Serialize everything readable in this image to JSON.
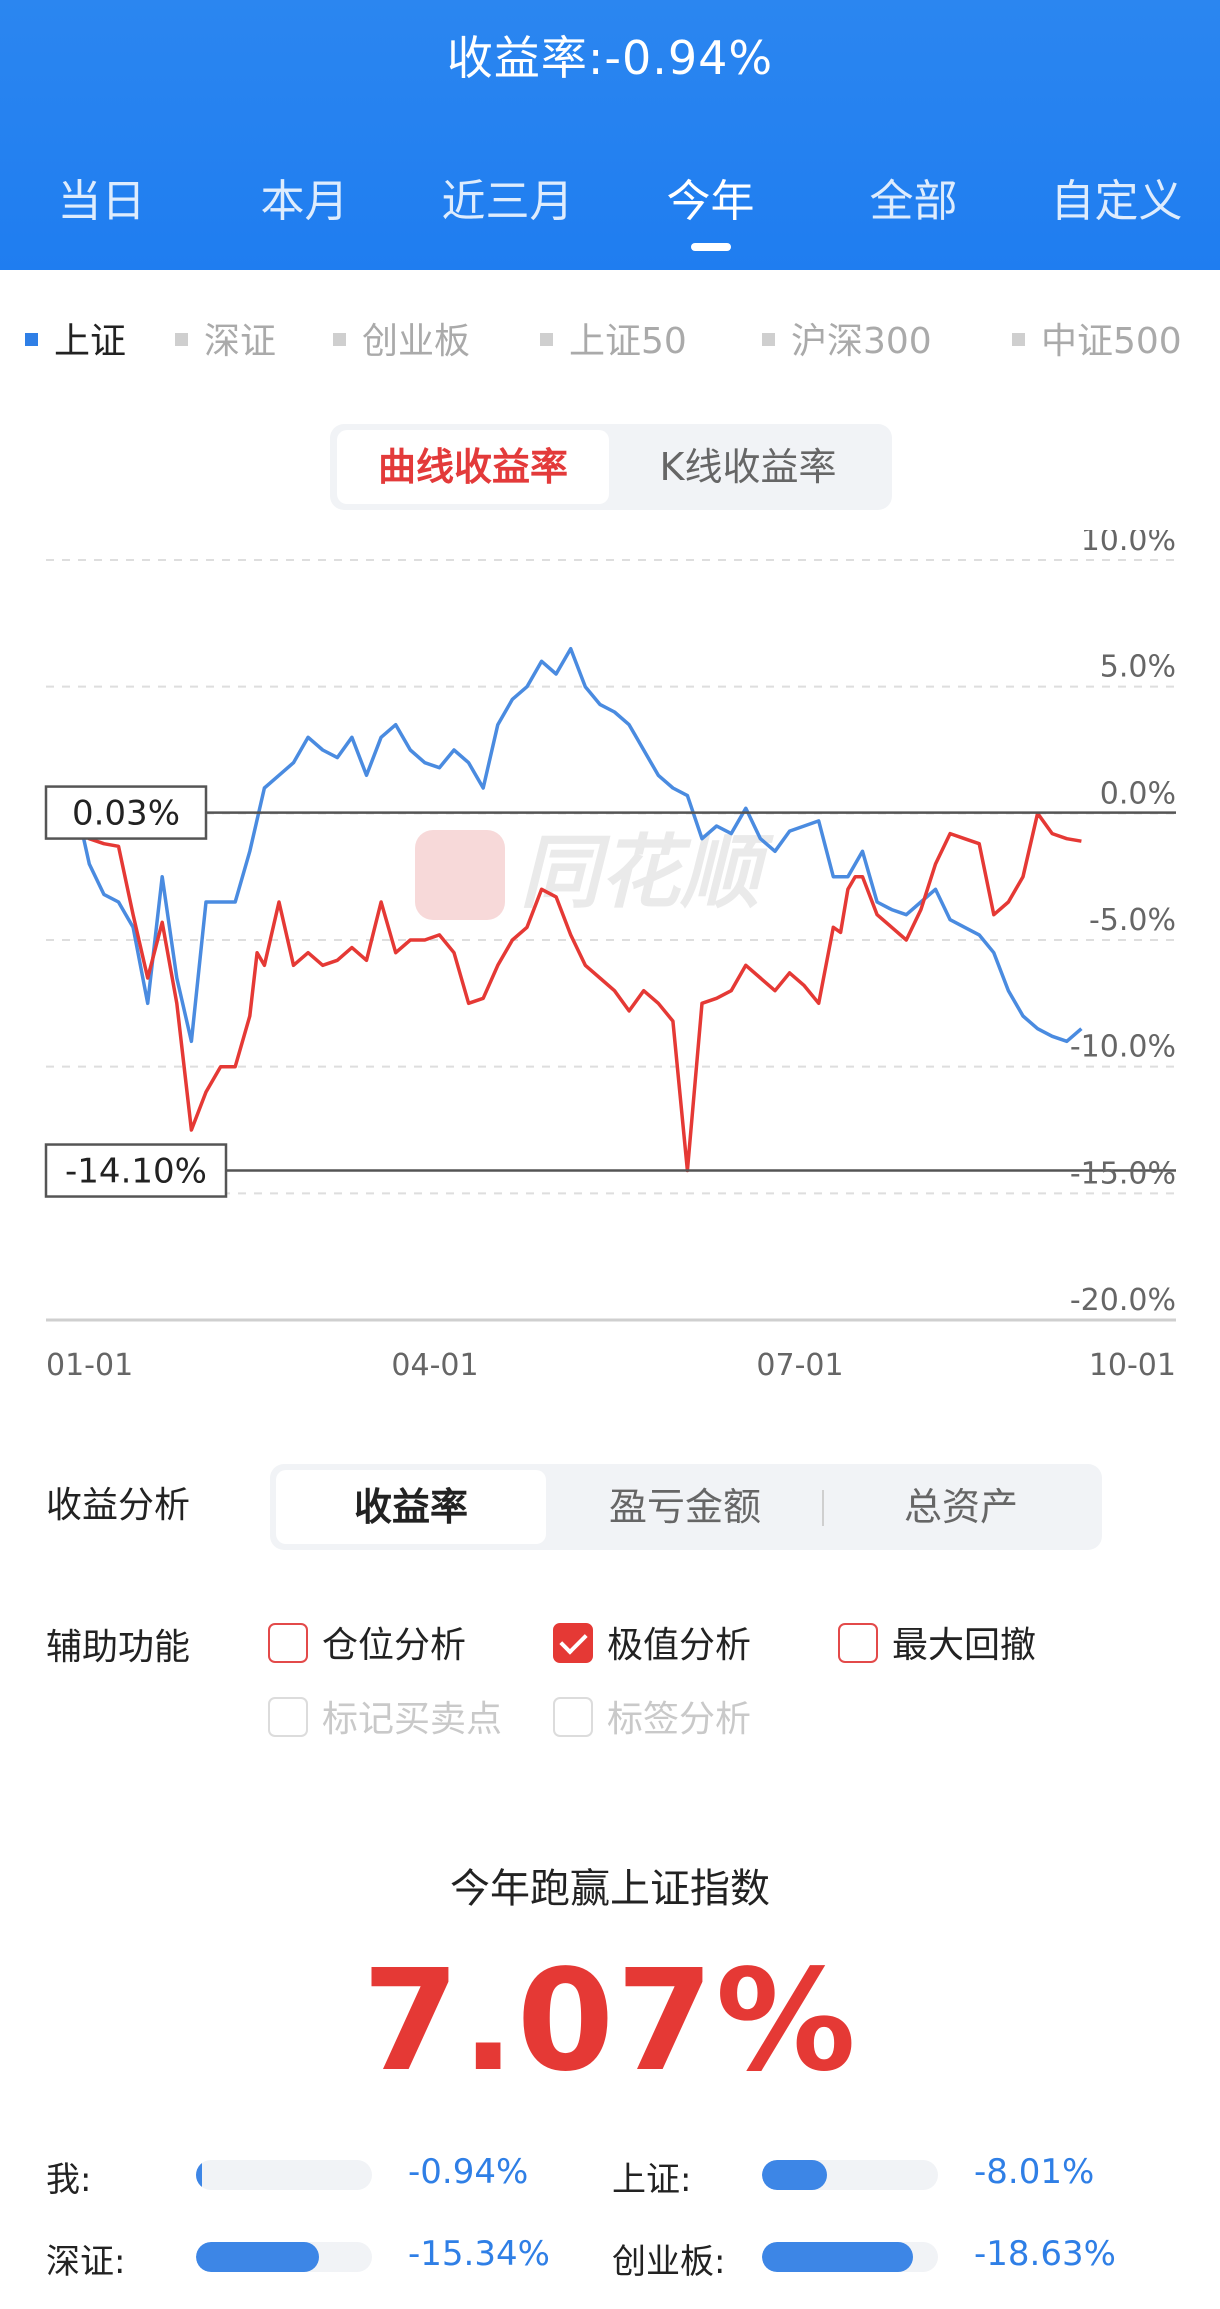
{
  "header": {
    "title": "收益率:-0.94%",
    "range_tabs": [
      {
        "label": "当日"
      },
      {
        "label": "本月"
      },
      {
        "label": "近三月"
      },
      {
        "label": "今年"
      },
      {
        "label": "全部"
      },
      {
        "label": "自定义"
      }
    ],
    "active_range_tab": "今年"
  },
  "index_tabs": [
    {
      "label": "上证",
      "active": true
    },
    {
      "label": "深证",
      "active": false
    },
    {
      "label": "创业板",
      "active": false
    },
    {
      "label": "上证50",
      "active": false
    },
    {
      "label": "沪深300",
      "active": false
    },
    {
      "label": "中证500",
      "active": false
    }
  ],
  "chart_toggle": {
    "curve_label": "曲线收益率",
    "kline_label": "K线收益率",
    "active": "曲线收益率"
  },
  "watermark": "同花顺",
  "colors": {
    "brand_blue": "#1f7df0",
    "mine_red": "#e53935",
    "index_blue": "#4a8be0",
    "bar_blue": "#3d86e6"
  },
  "chart_data": {
    "type": "line",
    "x_tick_labels": [
      "01-01",
      "04-01",
      "07-01",
      "10-01"
    ],
    "y_tick_labels": [
      "10.0%",
      "5.0%",
      "0.0%",
      "-5.0%",
      "-10.0%",
      "-15.0%",
      "-20.0%"
    ],
    "ylim": [
      -20,
      10
    ],
    "x_unit": "trading days since 01-01",
    "xlim": [
      0,
      275
    ],
    "max_marker": {
      "label": "0.03%",
      "value": 0.03
    },
    "min_marker": {
      "label": "-14.10%",
      "value": -14.1
    },
    "series": [
      {
        "color": "#e53935",
        "x": [
          0,
          2,
          6,
          10,
          14,
          18,
          22,
          26,
          30,
          34,
          38,
          42,
          46,
          48,
          50,
          54,
          58,
          62,
          66,
          70,
          74,
          78,
          82,
          86,
          90,
          94,
          98,
          102,
          106,
          110,
          114,
          118,
          122,
          126,
          130,
          134,
          138,
          142,
          146,
          150,
          154,
          158,
          162,
          166,
          170,
          174,
          178,
          182,
          186,
          190,
          194,
          198,
          202,
          206,
          208,
          210,
          212,
          214,
          218,
          222,
          226,
          230,
          234,
          238,
          242,
          246,
          250,
          254,
          258,
          262,
          266,
          270,
          274
        ],
        "y": [
          -0.5,
          -1.0,
          -1.2,
          -1.3,
          -4.0,
          -6.5,
          -4.3,
          -7.5,
          -12.5,
          -11.0,
          -10.0,
          -10.0,
          -8.0,
          -5.5,
          -6.0,
          -3.5,
          -6.0,
          -5.5,
          -6.0,
          -5.8,
          -5.3,
          -5.8,
          -3.5,
          -5.5,
          -5.0,
          -5.0,
          -4.8,
          -5.5,
          -7.5,
          -7.3,
          -6.0,
          -5.0,
          -4.5,
          -3.0,
          -3.3,
          -4.8,
          -6.0,
          -6.5,
          -7.0,
          -7.8,
          -7.0,
          -7.5,
          -8.2,
          -14.1,
          -7.5,
          -7.3,
          -7.0,
          -6.0,
          -6.5,
          -7.0,
          -6.3,
          -6.8,
          -7.5,
          -4.5,
          -4.7,
          -3.0,
          -2.5,
          -2.5,
          -4.0,
          -4.5,
          -5.0,
          -3.8,
          -2.0,
          -0.8,
          -1.0,
          -1.2,
          -4.0,
          -3.5,
          -2.5,
          0.0,
          -0.8,
          -1.0,
          -1.1
        ]
      },
      {
        "color": "#4a8be0",
        "x": [
          0,
          2,
          6,
          10,
          14,
          18,
          22,
          26,
          30,
          34,
          38,
          42,
          46,
          50,
          54,
          58,
          62,
          66,
          70,
          74,
          78,
          82,
          86,
          90,
          94,
          98,
          102,
          106,
          110,
          114,
          118,
          122,
          126,
          130,
          134,
          138,
          142,
          146,
          150,
          154,
          158,
          162,
          166,
          170,
          174,
          178,
          182,
          186,
          190,
          194,
          198,
          202,
          206,
          210,
          214,
          218,
          222,
          226,
          230,
          234,
          238,
          242,
          246,
          250,
          254,
          258,
          262,
          266,
          270,
          274
        ],
        "y": [
          -0.7,
          -2.0,
          -3.2,
          -3.5,
          -4.5,
          -7.5,
          -2.5,
          -6.5,
          -9.0,
          -3.5,
          -3.5,
          -3.5,
          -1.5,
          1.0,
          1.5,
          2.0,
          3.0,
          2.5,
          2.2,
          3.0,
          1.5,
          3.0,
          3.5,
          2.5,
          2.0,
          1.8,
          2.5,
          2.0,
          1.0,
          3.5,
          4.5,
          5.0,
          6.0,
          5.5,
          6.5,
          5.0,
          4.3,
          4.0,
          3.5,
          2.5,
          1.5,
          1.0,
          0.7,
          -1.0,
          -0.5,
          -0.8,
          0.2,
          -1.0,
          -1.5,
          -0.7,
          -0.5,
          -0.3,
          -2.5,
          -2.5,
          -1.5,
          -3.5,
          -3.8,
          -4.0,
          -3.5,
          -3.0,
          -4.2,
          -4.5,
          -4.8,
          -5.5,
          -7.0,
          -8.0,
          -8.5,
          -8.8,
          -9.0,
          -8.5
        ]
      }
    ]
  },
  "analysis": {
    "label": "收益分析",
    "options": [
      "收益率",
      "盈亏金额",
      "总资产"
    ],
    "active": "收益率"
  },
  "aux": {
    "label": "辅助功能",
    "options": [
      {
        "label": "仓位分析",
        "checked": false,
        "enabled": true
      },
      {
        "label": "极值分析",
        "checked": true,
        "enabled": true
      },
      {
        "label": "最大回撤",
        "checked": false,
        "enabled": true
      },
      {
        "label": "标记买卖点",
        "checked": false,
        "enabled": false
      },
      {
        "label": "标签分析",
        "checked": false,
        "enabled": false
      }
    ]
  },
  "summary": {
    "label": "今年跑赢上证指数",
    "value": "7.07%"
  },
  "comparison": [
    {
      "name": "我:",
      "value": "-0.94%",
      "bar_fraction": 0.03
    },
    {
      "name": "上证:",
      "value": "-8.01%",
      "bar_fraction": 0.37
    },
    {
      "name": "深证:",
      "value": "-15.34%",
      "bar_fraction": 0.7
    },
    {
      "name": "创业板:",
      "value": "-18.63%",
      "bar_fraction": 0.86
    }
  ]
}
